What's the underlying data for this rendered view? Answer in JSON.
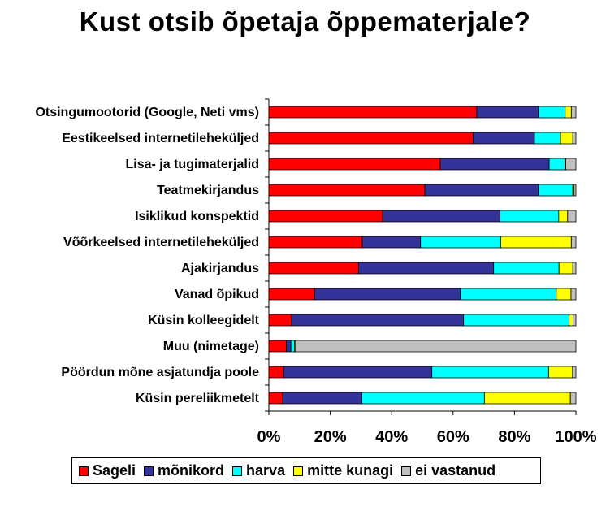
{
  "chart_data": {
    "type": "bar",
    "orientation": "horizontal",
    "stacked": "percent",
    "title": "Kust otsib õpetaja õppematerjale?",
    "categories": [
      "Otsingumootorid (Google, Neti vms)",
      "Eestikeelsed internetileheküljed",
      "Lisa- ja tugimaterjalid",
      "Teatmekirjandus",
      "Isiklikud konspektid",
      "Võõrkeelsed internetileheküljed",
      "Ajakirjandus",
      "Vanad õpikud",
      "Küsin kolleegidelt",
      "Muu (nimetage)",
      "Pöördun mõne asjatundja poole",
      "Küsin pereliikmetelt"
    ],
    "series": [
      {
        "name": "Sageli",
        "color": "#ff0000",
        "values": [
          67.7,
          66.5,
          55.8,
          50.8,
          37.1,
          30.4,
          29.2,
          14.9,
          7.4,
          5.7,
          4.8,
          4.5
        ]
      },
      {
        "name": "mõnikord",
        "color": "#333399",
        "values": [
          20.1,
          20.0,
          35.5,
          37.0,
          38.2,
          19.0,
          44.0,
          47.5,
          56.0,
          1.5,
          48.3,
          25.8
        ]
      },
      {
        "name": "harva",
        "color": "#00ffff",
        "values": [
          8.7,
          8.5,
          5.1,
          11.2,
          19.1,
          26.1,
          21.3,
          31.2,
          34.4,
          1.2,
          38.0,
          39.9
        ]
      },
      {
        "name": "mitte kunagi",
        "color": "#ffff00",
        "values": [
          2.0,
          4.0,
          0.3,
          0.4,
          2.9,
          23.0,
          4.5,
          4.8,
          1.3,
          0.3,
          7.8,
          28.0
        ]
      },
      {
        "name": "ei vastanud",
        "color": "#c0c0c0",
        "values": [
          1.5,
          1.0,
          3.3,
          0.6,
          2.7,
          1.5,
          1.0,
          1.6,
          0.9,
          91.3,
          1.1,
          1.8
        ]
      }
    ],
    "x_ticks": [
      "0%",
      "20%",
      "40%",
      "60%",
      "80%",
      "100%"
    ],
    "xlim": [
      0,
      100
    ],
    "legend_position": "bottom",
    "grid": false
  }
}
